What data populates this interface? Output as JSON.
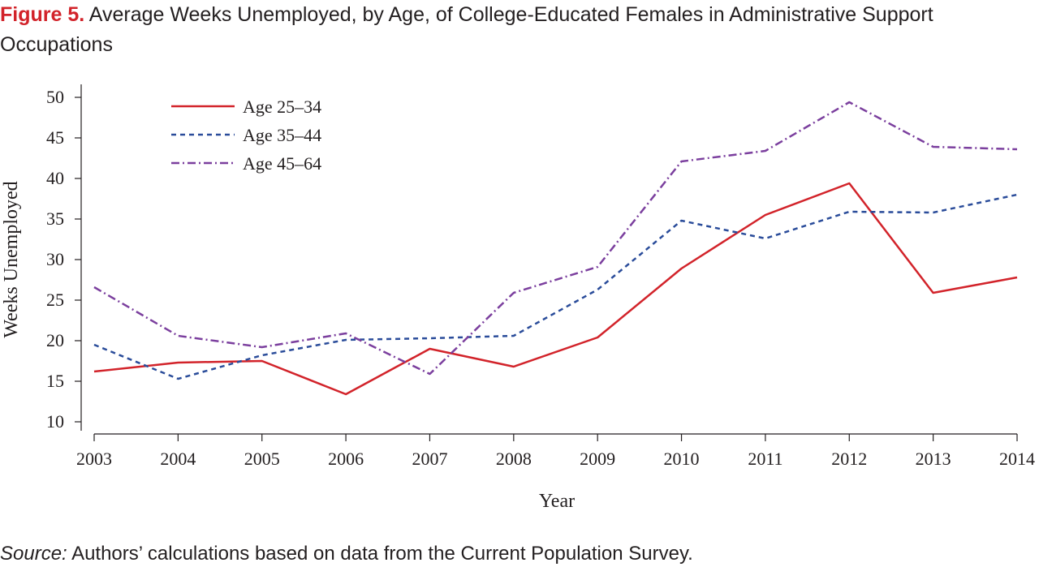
{
  "figure": {
    "label": "Figure 5.",
    "title": "Average Weeks Unemployed, by Age, of College-Educated Females in Administrative Support Occupations"
  },
  "source": {
    "label": "Source:",
    "text": "Authors’ calculations based on data from the Current Population Survey."
  },
  "chart_data": {
    "type": "line",
    "title": "Average Weeks Unemployed, by Age, of College-Educated Females in Administrative Support Occupations",
    "xlabel": "Year",
    "ylabel": "Weeks Unemployed",
    "x": [
      2003,
      2004,
      2005,
      2006,
      2007,
      2008,
      2009,
      2010,
      2011,
      2012,
      2013,
      2014
    ],
    "ylim": [
      10,
      50
    ],
    "yticks": [
      10,
      15,
      20,
      25,
      30,
      35,
      40,
      45,
      50
    ],
    "grid": false,
    "legend": "top-left",
    "series": [
      {
        "name": "Age 25–34",
        "color": "#d2232a",
        "dash": "solid",
        "values": [
          16.2,
          17.3,
          17.5,
          13.4,
          19.0,
          16.8,
          20.4,
          28.9,
          35.5,
          39.4,
          25.9,
          27.8
        ]
      },
      {
        "name": "Age 35–44",
        "color": "#2a4c9a",
        "dash": "dashed",
        "values": [
          19.5,
          15.3,
          18.2,
          20.1,
          20.3,
          20.6,
          26.3,
          34.8,
          32.6,
          35.9,
          35.8,
          38.0
        ]
      },
      {
        "name": "Age 45–64",
        "color": "#7b3f9e",
        "dash": "dash-dot",
        "values": [
          26.6,
          20.6,
          19.2,
          20.9,
          15.9,
          25.9,
          29.1,
          42.1,
          43.4,
          49.4,
          43.9,
          43.6
        ]
      }
    ]
  }
}
